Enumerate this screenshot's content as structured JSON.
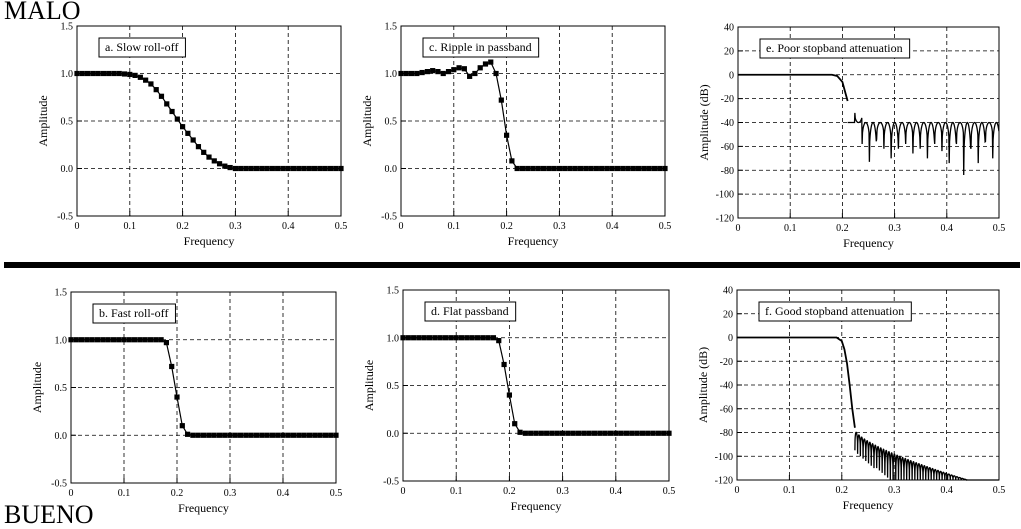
{
  "labels": {
    "top": "MALO",
    "bottom": "BUENO"
  },
  "chart_data": [
    {
      "id": "a",
      "type": "scatter",
      "series_style": "line-with-square-markers",
      "annotation": "a.  Slow roll-off",
      "xlabel": "Frequency",
      "ylabel": "Amplitude",
      "xlim": [
        0,
        0.5
      ],
      "ylim": [
        -0.5,
        1.5
      ],
      "xticks": [
        "0",
        "0.1",
        "0.2",
        "0.3",
        "0.4",
        "0.5"
      ],
      "yticks": [
        "-0.5",
        "0.0",
        "0.5",
        "1.0",
        "1.5"
      ],
      "grid": true,
      "x": [
        0,
        0.01,
        0.02,
        0.03,
        0.04,
        0.05,
        0.06,
        0.07,
        0.08,
        0.09,
        0.1,
        0.11,
        0.12,
        0.13,
        0.14,
        0.15,
        0.16,
        0.17,
        0.18,
        0.19,
        0.2,
        0.21,
        0.22,
        0.23,
        0.24,
        0.25,
        0.26,
        0.27,
        0.28,
        0.29,
        0.3,
        0.31,
        0.32,
        0.33,
        0.34,
        0.35,
        0.36,
        0.37,
        0.38,
        0.39,
        0.4,
        0.41,
        0.42,
        0.43,
        0.44,
        0.45,
        0.46,
        0.47,
        0.48,
        0.49,
        0.5
      ],
      "y": [
        1,
        1,
        1,
        1,
        1,
        1,
        1,
        1,
        1,
        0.995,
        0.99,
        0.98,
        0.96,
        0.93,
        0.89,
        0.83,
        0.76,
        0.68,
        0.6,
        0.52,
        0.44,
        0.37,
        0.3,
        0.23,
        0.17,
        0.12,
        0.08,
        0.05,
        0.025,
        0.01,
        0.0,
        0,
        0,
        0,
        0,
        0,
        0,
        0,
        0,
        0,
        0,
        0,
        0,
        0,
        0,
        0,
        0,
        0,
        0,
        0,
        0
      ]
    },
    {
      "id": "c",
      "type": "scatter",
      "series_style": "line-with-square-markers",
      "annotation": "c.  Ripple in passband",
      "xlabel": "Frequency",
      "ylabel": "Amplitude",
      "xlim": [
        0,
        0.5
      ],
      "ylim": [
        -0.5,
        1.5
      ],
      "xticks": [
        "0",
        "0.1",
        "0.2",
        "0.3",
        "0.4",
        "0.5"
      ],
      "yticks": [
        "-0.5",
        "0.0",
        "0.5",
        "1.0",
        "1.5"
      ],
      "grid": true,
      "x": [
        0,
        0.01,
        0.02,
        0.03,
        0.04,
        0.05,
        0.06,
        0.07,
        0.08,
        0.09,
        0.1,
        0.11,
        0.12,
        0.13,
        0.14,
        0.15,
        0.16,
        0.17,
        0.18,
        0.19,
        0.2,
        0.21,
        0.22,
        0.23,
        0.24,
        0.25,
        0.26,
        0.27,
        0.28,
        0.29,
        0.3,
        0.31,
        0.32,
        0.33,
        0.34,
        0.35,
        0.36,
        0.37,
        0.38,
        0.39,
        0.4,
        0.41,
        0.42,
        0.43,
        0.44,
        0.45,
        0.46,
        0.47,
        0.48,
        0.49,
        0.5
      ],
      "y": [
        1,
        1,
        1,
        1,
        1.01,
        1.02,
        1.03,
        1.02,
        1.0,
        1.02,
        1.04,
        1.06,
        1.05,
        0.97,
        1.0,
        1.06,
        1.1,
        1.12,
        1.0,
        0.72,
        0.35,
        0.08,
        0.0,
        0,
        0,
        0,
        0,
        0,
        0,
        0,
        0,
        0,
        0,
        0,
        0,
        0,
        0,
        0,
        0,
        0,
        0,
        0,
        0,
        0,
        0,
        0,
        0,
        0,
        0,
        0,
        0
      ]
    },
    {
      "id": "e",
      "type": "line",
      "annotation": "e.  Poor stopband attenuation",
      "xlabel": "Frequency",
      "ylabel": "Amplitude (dB)",
      "xlim": [
        0,
        0.5
      ],
      "ylim": [
        -120,
        40
      ],
      "xticks": [
        "0",
        "0.1",
        "0.2",
        "0.3",
        "0.4",
        "0.5"
      ],
      "yticks": [
        "-120",
        "-100",
        "-80",
        "-60",
        "-40",
        "-20",
        "0",
        "20",
        "40"
      ],
      "grid": true,
      "passband": {
        "x": [
          0,
          0.18,
          0.19,
          0.2,
          0.205,
          0.21
        ],
        "y": [
          0,
          0,
          -1,
          -6,
          -14,
          -22
        ]
      },
      "stopband": {
        "start": 0.21,
        "end": 0.5,
        "period": 0.0139,
        "floor": -40,
        "null_depths": [
          -40,
          -32,
          -58,
          -73,
          -54,
          -62,
          -70,
          -62,
          -58,
          -66,
          -62,
          -70,
          -58,
          -64,
          -74,
          -58,
          -84,
          -62,
          -74,
          -56,
          -70
        ]
      }
    },
    {
      "id": "b",
      "type": "scatter",
      "series_style": "line-with-square-markers",
      "annotation": "b.  Fast roll-off",
      "xlabel": "Frequency",
      "ylabel": "Amplitude",
      "xlim": [
        0,
        0.5
      ],
      "ylim": [
        -0.5,
        1.5
      ],
      "xticks": [
        "0",
        "0.1",
        "0.2",
        "0.3",
        "0.4",
        "0.5"
      ],
      "yticks": [
        "-0.5",
        "0.0",
        "0.5",
        "1.0",
        "1.5"
      ],
      "grid": true,
      "x": [
        0,
        0.01,
        0.02,
        0.03,
        0.04,
        0.05,
        0.06,
        0.07,
        0.08,
        0.09,
        0.1,
        0.11,
        0.12,
        0.13,
        0.14,
        0.15,
        0.16,
        0.17,
        0.18,
        0.19,
        0.2,
        0.21,
        0.22,
        0.23,
        0.24,
        0.25,
        0.26,
        0.27,
        0.28,
        0.29,
        0.3,
        0.31,
        0.32,
        0.33,
        0.34,
        0.35,
        0.36,
        0.37,
        0.38,
        0.39,
        0.4,
        0.41,
        0.42,
        0.43,
        0.44,
        0.45,
        0.46,
        0.47,
        0.48,
        0.49,
        0.5
      ],
      "y": [
        1,
        1,
        1,
        1,
        1,
        1,
        1,
        1,
        1,
        1,
        1,
        1,
        1,
        1,
        1,
        1,
        1,
        1,
        0.97,
        0.72,
        0.4,
        0.1,
        0.01,
        0,
        0,
        0,
        0,
        0,
        0,
        0,
        0,
        0,
        0,
        0,
        0,
        0,
        0,
        0,
        0,
        0,
        0,
        0,
        0,
        0,
        0,
        0,
        0,
        0,
        0,
        0,
        0
      ]
    },
    {
      "id": "d",
      "type": "scatter",
      "series_style": "line-with-square-markers",
      "annotation": "d.  Flat passband",
      "xlabel": "Frequency",
      "ylabel": "Amplitude",
      "xlim": [
        0,
        0.5
      ],
      "ylim": [
        -0.5,
        1.5
      ],
      "xticks": [
        "0",
        "0.1",
        "0.2",
        "0.3",
        "0.4",
        "0.5"
      ],
      "yticks": [
        "-0.5",
        "0.0",
        "0.5",
        "1.0",
        "1.5"
      ],
      "grid": true,
      "x": [
        0,
        0.01,
        0.02,
        0.03,
        0.04,
        0.05,
        0.06,
        0.07,
        0.08,
        0.09,
        0.1,
        0.11,
        0.12,
        0.13,
        0.14,
        0.15,
        0.16,
        0.17,
        0.18,
        0.19,
        0.2,
        0.21,
        0.22,
        0.23,
        0.24,
        0.25,
        0.26,
        0.27,
        0.28,
        0.29,
        0.3,
        0.31,
        0.32,
        0.33,
        0.34,
        0.35,
        0.36,
        0.37,
        0.38,
        0.39,
        0.4,
        0.41,
        0.42,
        0.43,
        0.44,
        0.45,
        0.46,
        0.47,
        0.48,
        0.49,
        0.5
      ],
      "y": [
        1,
        1,
        1,
        1,
        1,
        1,
        1,
        1,
        1,
        1,
        1,
        1,
        1,
        1,
        1,
        1,
        1,
        1,
        0.97,
        0.72,
        0.4,
        0.1,
        0.01,
        0,
        0,
        0,
        0,
        0,
        0,
        0,
        0,
        0,
        0,
        0,
        0,
        0,
        0,
        0,
        0,
        0,
        0,
        0,
        0,
        0,
        0,
        0,
        0,
        0,
        0,
        0,
        0
      ]
    },
    {
      "id": "f",
      "type": "line",
      "annotation": "f.  Good stopband attenuation",
      "xlabel": "Frequency",
      "ylabel": "Amplitude (dB)",
      "xlim": [
        0,
        0.5
      ],
      "ylim": [
        -120,
        40
      ],
      "xticks": [
        "0",
        "0.1",
        "0.2",
        "0.3",
        "0.4",
        "0.5"
      ],
      "yticks": [
        "-120",
        "-100",
        "-80",
        "-60",
        "-40",
        "-20",
        "0",
        "20",
        "40"
      ],
      "grid": true,
      "passband": {
        "x": [
          0,
          0.19,
          0.2,
          0.205,
          0.21,
          0.215,
          0.22,
          0.225
        ],
        "y": [
          0,
          0,
          -3,
          -10,
          -22,
          -40,
          -60,
          -76
        ]
      },
      "stopband": {
        "start": 0.225,
        "end": 0.5,
        "period": 0.0052,
        "floor_start": -78,
        "floor_end": -120,
        "end_of_ripple": 0.44,
        "null_depths": [
          -95,
          -98,
          -100,
          -102,
          -104,
          -106,
          -108,
          -110,
          -112,
          -114,
          -116,
          -118,
          -120
        ]
      }
    }
  ]
}
